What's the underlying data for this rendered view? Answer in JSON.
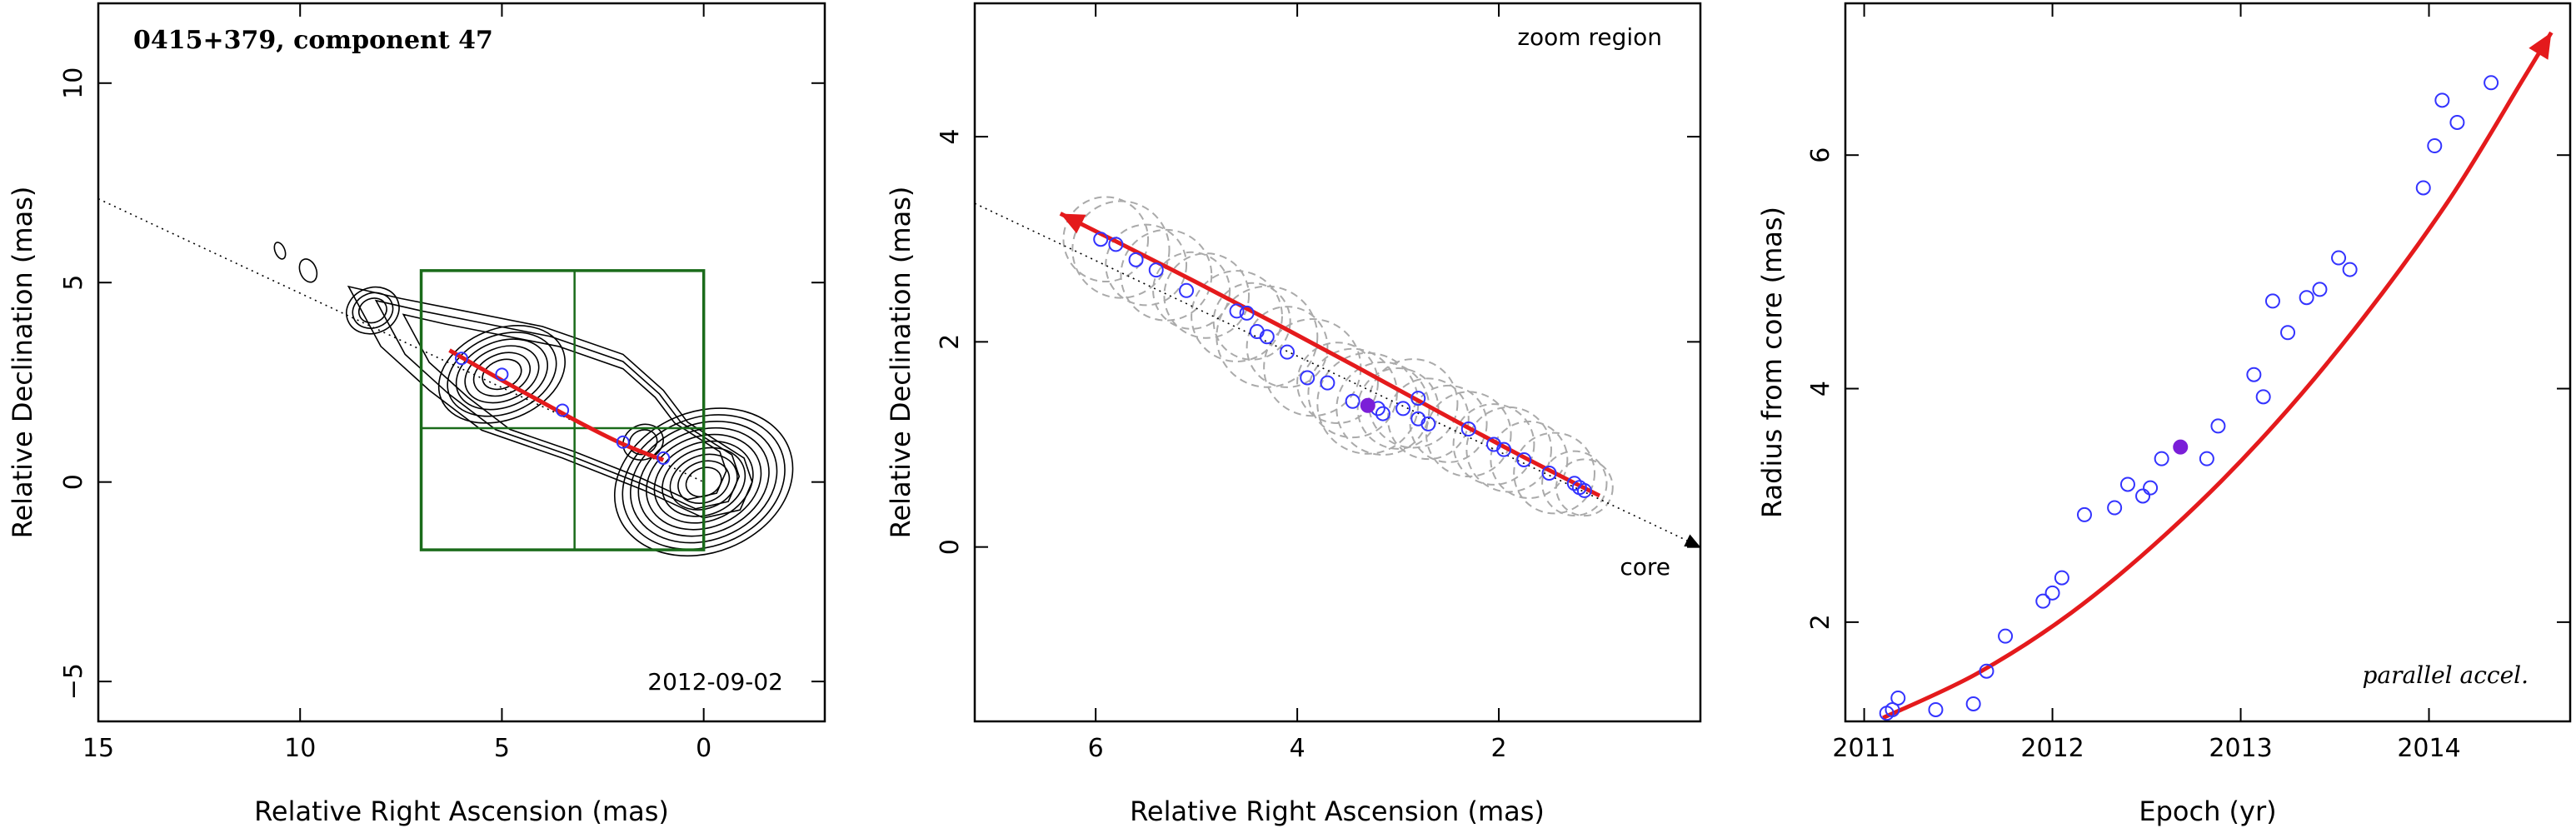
{
  "chart_data": [
    {
      "type": "scatter",
      "subtype": "contour-map",
      "title": "0415+379, component 47",
      "date": "2012-09-02",
      "xlabel": "Relative Right Ascension (mas)",
      "ylabel": "Relative Declination (mas)",
      "xlim": [
        15,
        -3
      ],
      "ylim": [
        -6,
        12
      ],
      "xticks": [
        "15",
        "10",
        "5",
        "0"
      ],
      "yticks": [
        "−5",
        "0",
        "5",
        "10"
      ],
      "contour_peaks": [
        {
          "x": 0.0,
          "y": 0.0,
          "rx": 0.45,
          "ry": 0.35,
          "levels": 10
        },
        {
          "x": 5.0,
          "y": 2.7,
          "rx": 0.5,
          "ry": 0.35,
          "levels": 6
        },
        {
          "x": 8.2,
          "y": 4.3,
          "rx": 0.35,
          "ry": 0.3,
          "levels": 3
        },
        {
          "x": 1.5,
          "y": 1.0,
          "rx": 0.35,
          "ry": 0.3,
          "levels": 2
        },
        {
          "x": 9.8,
          "y": 5.3,
          "rx": 0.2,
          "ry": 0.3,
          "levels": 1
        },
        {
          "x": 10.5,
          "y": 5.8,
          "rx": 0.12,
          "ry": 0.22,
          "levels": 1
        }
      ],
      "jet_envelope": [
        [
          8.8,
          4.9
        ],
        [
          7.5,
          4.6
        ],
        [
          6.0,
          4.3
        ],
        [
          4.0,
          3.9
        ],
        [
          2.0,
          3.2
        ],
        [
          1.0,
          2.3
        ],
        [
          0.4,
          1.5
        ],
        [
          -1.0,
          0.6
        ],
        [
          -1.2,
          0.0
        ],
        [
          -0.9,
          -0.7
        ],
        [
          0.0,
          -0.9
        ],
        [
          1.5,
          -0.2
        ],
        [
          3.5,
          0.6
        ],
        [
          5.5,
          1.3
        ],
        [
          6.8,
          2.3
        ],
        [
          8.0,
          3.4
        ],
        [
          8.8,
          4.9
        ]
      ],
      "jet_axis": {
        "from": [
          15,
          7.1
        ],
        "to": [
          0,
          0
        ]
      },
      "trajectory": [
        [
          6.3,
          3.3
        ],
        [
          5.0,
          2.55
        ],
        [
          4.0,
          2.0
        ],
        [
          3.0,
          1.45
        ],
        [
          2.0,
          0.95
        ],
        [
          1.0,
          0.55
        ]
      ],
      "points": [
        [
          6.0,
          3.1
        ],
        [
          5.0,
          2.7
        ],
        [
          3.5,
          1.8
        ],
        [
          2.0,
          1.0
        ],
        [
          1.0,
          0.6
        ]
      ],
      "zoom_box": {
        "x": [
          7.0,
          0.0
        ],
        "y": [
          -1.7,
          5.3
        ],
        "mid_x": 3.2,
        "mid_y": 1.35
      },
      "colors": {
        "trajectory": "#e41a1c",
        "points": "#3333ff",
        "box": "#1a6b1a"
      }
    },
    {
      "type": "scatter",
      "title": "zoom region",
      "annotation": "core",
      "xlabel": "Relative Right Ascension (mas)",
      "ylabel": "Relative Declination (mas)",
      "xlim": [
        7.2,
        0.0
      ],
      "ylim": [
        -1.7,
        5.3
      ],
      "xticks": [
        6,
        4,
        2
      ],
      "yticks": [
        0,
        2,
        4
      ],
      "trajectory": [
        [
          6.35,
          3.25
        ],
        [
          5.8,
          2.98
        ],
        [
          5.0,
          2.58
        ],
        [
          4.2,
          2.17
        ],
        [
          3.4,
          1.75
        ],
        [
          2.6,
          1.32
        ],
        [
          1.8,
          0.9
        ],
        [
          1.0,
          0.5
        ]
      ],
      "jet_axis": {
        "from": [
          7.2,
          3.35
        ],
        "to": [
          0,
          0
        ]
      },
      "points": [
        [
          5.95,
          3.0
        ],
        [
          5.8,
          2.95
        ],
        [
          5.6,
          2.8
        ],
        [
          5.4,
          2.7
        ],
        [
          5.1,
          2.5
        ],
        [
          4.6,
          2.3
        ],
        [
          4.5,
          2.28
        ],
        [
          4.4,
          2.1
        ],
        [
          4.3,
          2.05
        ],
        [
          4.1,
          1.9
        ],
        [
          3.9,
          1.65
        ],
        [
          3.7,
          1.6
        ],
        [
          3.45,
          1.42
        ],
        [
          3.2,
          1.35
        ],
        [
          3.15,
          1.3
        ],
        [
          2.95,
          1.35
        ],
        [
          2.8,
          1.45
        ],
        [
          2.8,
          1.25
        ],
        [
          2.7,
          1.2
        ],
        [
          2.3,
          1.15
        ],
        [
          2.05,
          1.0
        ],
        [
          1.95,
          0.95
        ],
        [
          1.75,
          0.85
        ],
        [
          1.5,
          0.72
        ],
        [
          1.25,
          0.62
        ],
        [
          1.2,
          0.58
        ],
        [
          1.15,
          0.55
        ]
      ],
      "highlight_point": [
        3.3,
        1.38
      ],
      "circles": [
        [
          5.9,
          3.0,
          0.42
        ],
        [
          5.75,
          2.9,
          0.48
        ],
        [
          5.5,
          2.75,
          0.4
        ],
        [
          5.3,
          2.65,
          0.45
        ],
        [
          5.05,
          2.5,
          0.38
        ],
        [
          4.9,
          2.45,
          0.42
        ],
        [
          4.6,
          2.25,
          0.45
        ],
        [
          4.45,
          2.2,
          0.38
        ],
        [
          4.3,
          2.05,
          0.5
        ],
        [
          4.1,
          1.95,
          0.4
        ],
        [
          3.85,
          1.75,
          0.48
        ],
        [
          3.6,
          1.6,
          0.4
        ],
        [
          3.45,
          1.5,
          0.44
        ],
        [
          3.3,
          1.4,
          0.5
        ],
        [
          3.15,
          1.35,
          0.46
        ],
        [
          3.0,
          1.35,
          0.4
        ],
        [
          2.85,
          1.4,
          0.44
        ],
        [
          2.7,
          1.25,
          0.4
        ],
        [
          2.5,
          1.2,
          0.38
        ],
        [
          2.3,
          1.1,
          0.42
        ],
        [
          2.05,
          1.0,
          0.4
        ],
        [
          1.9,
          0.95,
          0.42
        ],
        [
          1.7,
          0.85,
          0.38
        ],
        [
          1.45,
          0.72,
          0.4
        ],
        [
          1.25,
          0.62,
          0.32
        ],
        [
          1.15,
          0.58,
          0.28
        ]
      ],
      "colors": {
        "trajectory": "#e41a1c",
        "points": "#3333ff",
        "highlight": "#7b1fd8",
        "circles": "#aaaaaa"
      }
    },
    {
      "type": "scatter",
      "annotation": "parallel accel.",
      "xlabel": "Epoch (yr)",
      "ylabel": "Radius from core (mas)",
      "xlim": [
        2010.9,
        2014.75
      ],
      "ylim": [
        1.15,
        7.3
      ],
      "xticks": [
        2011,
        2012,
        2013,
        2014
      ],
      "yticks": [
        2,
        4,
        6
      ],
      "fit_curve": [
        [
          2011.1,
          1.18
        ],
        [
          2011.6,
          1.56
        ],
        [
          2012.1,
          2.08
        ],
        [
          2012.6,
          2.75
        ],
        [
          2013.1,
          3.55
        ],
        [
          2013.6,
          4.5
        ],
        [
          2014.1,
          5.6
        ],
        [
          2014.5,
          6.65
        ],
        [
          2014.65,
          7.05
        ]
      ],
      "points": [
        [
          2011.12,
          1.22
        ],
        [
          2011.15,
          1.25
        ],
        [
          2011.18,
          1.35
        ],
        [
          2011.38,
          1.25
        ],
        [
          2011.58,
          1.3
        ],
        [
          2011.65,
          1.58
        ],
        [
          2011.75,
          1.88
        ],
        [
          2011.95,
          2.18
        ],
        [
          2012.0,
          2.25
        ],
        [
          2012.05,
          2.38
        ],
        [
          2012.17,
          2.92
        ],
        [
          2012.33,
          2.98
        ],
        [
          2012.4,
          3.18
        ],
        [
          2012.48,
          3.08
        ],
        [
          2012.52,
          3.15
        ],
        [
          2012.58,
          3.4
        ],
        [
          2012.82,
          3.4
        ],
        [
          2012.88,
          3.68
        ],
        [
          2013.07,
          4.12
        ],
        [
          2013.12,
          3.93
        ],
        [
          2013.17,
          4.75
        ],
        [
          2013.25,
          4.48
        ],
        [
          2013.35,
          4.78
        ],
        [
          2013.42,
          4.85
        ],
        [
          2013.52,
          5.12
        ],
        [
          2013.58,
          5.02
        ],
        [
          2013.97,
          5.72
        ],
        [
          2014.03,
          6.08
        ],
        [
          2014.07,
          6.47
        ],
        [
          2014.15,
          6.28
        ],
        [
          2014.33,
          6.62
        ]
      ],
      "highlight_point": [
        2012.68,
        3.5
      ],
      "colors": {
        "trajectory": "#e41a1c",
        "points": "#3333ff",
        "highlight": "#7b1fd8"
      }
    }
  ]
}
